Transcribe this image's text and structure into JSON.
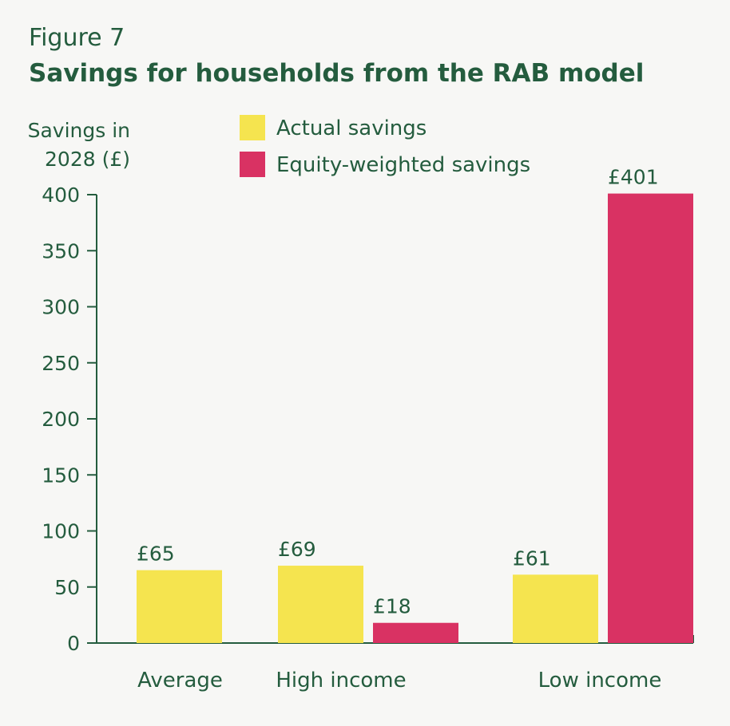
{
  "figure": {
    "label": "Figure 7",
    "title": "Savings for households from the RAB model"
  },
  "colors": {
    "background": "#f7f7f5",
    "text": "#245c3e",
    "actual": "#f5e44f",
    "equity": "#d93263"
  },
  "chart_data": {
    "type": "bar",
    "ylabel_lines": [
      "Savings in",
      "2028 (£)"
    ],
    "ylim": [
      0,
      400
    ],
    "yticks": [
      0,
      50,
      100,
      150,
      200,
      250,
      300,
      350,
      400
    ],
    "categories": [
      "Average",
      "High income",
      "Low income"
    ],
    "legend_position": "top",
    "series": [
      {
        "name": "Actual savings",
        "color": "#f5e44f",
        "values": [
          65,
          69,
          61
        ],
        "labels": [
          "£65",
          "£69",
          "£61"
        ]
      },
      {
        "name": "Equity-weighted savings",
        "color": "#d93263",
        "values": [
          null,
          18,
          401
        ],
        "labels": [
          "",
          "£18",
          "£401"
        ]
      }
    ],
    "grid": false
  }
}
